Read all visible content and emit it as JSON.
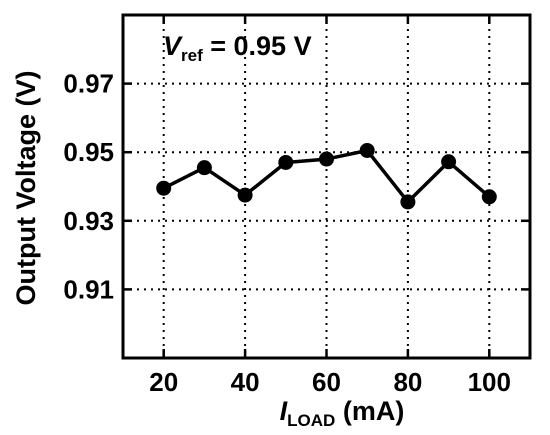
{
  "chart_data": {
    "type": "line",
    "x": [
      20,
      30,
      40,
      50,
      60,
      70,
      80,
      90,
      100
    ],
    "series": [
      {
        "values": [
          0.9395,
          0.9455,
          0.9375,
          0.947,
          0.948,
          0.9505,
          0.9355,
          0.9472,
          0.937
        ]
      }
    ],
    "xlim": [
      10,
      110
    ],
    "ylim": [
      0.89,
      0.99
    ],
    "xticks": [
      20,
      40,
      60,
      80,
      100
    ],
    "yticks": [
      0.91,
      0.93,
      0.95,
      0.97
    ],
    "xtick_labels": [
      "20",
      "40",
      "60",
      "80",
      "100"
    ],
    "ytick_labels": [
      "0.91",
      "0.93",
      "0.95",
      "0.97"
    ],
    "xlabel": {
      "main": "I",
      "sub": "LOAD",
      "rest": " (mA)"
    },
    "ylabel": "Output Voltage (V)",
    "annotation": {
      "main": "V",
      "sub": "ref",
      "rest": " = 0.95 V"
    },
    "grid": true,
    "line_color": "#000000",
    "marker_color": "#000000"
  }
}
